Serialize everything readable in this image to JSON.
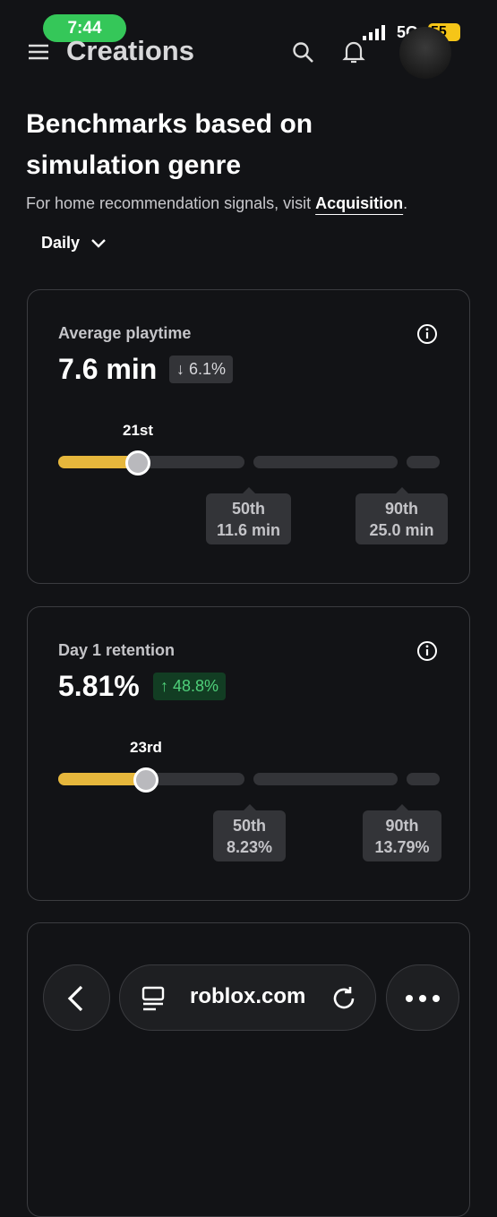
{
  "status_bar": {
    "time": "7:44",
    "network": "5G",
    "battery": "55"
  },
  "header": {
    "title": "Creations"
  },
  "page": {
    "title": "Benchmarks based on simulation genre",
    "subtitle": "For home recommendation signals, visit ",
    "link": "Acquisition",
    "subtitle_end": ".",
    "period": "Daily"
  },
  "cards": [
    {
      "label": "Average playtime",
      "value": "7.6 min",
      "change": "6.1%",
      "rank": "21st",
      "markers": [
        {
          "label": "50th",
          "value": "11.6 min"
        },
        {
          "label": "90th",
          "value": "25.0 min"
        }
      ]
    },
    {
      "label": "Day 1 retention",
      "value": "5.81%",
      "change": "48.8%",
      "rank": "23rd",
      "markers": [
        {
          "label": "50th",
          "value": "8.23%"
        },
        {
          "label": "90th",
          "value": "13.79%"
        }
      ]
    }
  ],
  "browser": {
    "url": "roblox.com"
  }
}
